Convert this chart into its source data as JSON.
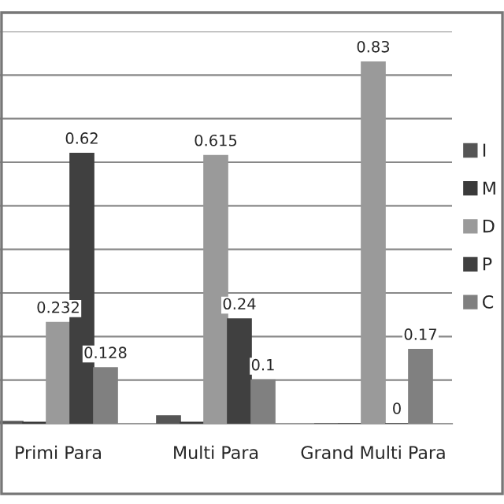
{
  "chart_data": {
    "type": "bar",
    "categories": [
      "Primi Para",
      "Multi Para",
      "Grand Multi Para"
    ],
    "series": [
      {
        "name": "I",
        "color": "#555555",
        "values": [
          0.005,
          0.018,
          0
        ],
        "value_labels": [
          null,
          null,
          null
        ]
      },
      {
        "name": "M",
        "color": "#3a3a3a",
        "values": [
          0.003,
          0.003,
          0
        ],
        "value_labels": [
          null,
          null,
          null
        ]
      },
      {
        "name": "D",
        "color": "#9a9a9a",
        "values": [
          0.232,
          0.615,
          0.83
        ],
        "value_labels": [
          "0.232",
          "0.615",
          "0.83"
        ]
      },
      {
        "name": "P",
        "color": "#404040",
        "values": [
          0.62,
          0.24,
          0
        ],
        "value_labels": [
          "0.62",
          "0.24",
          "0"
        ]
      },
      {
        "name": "C",
        "color": "#808080",
        "values": [
          0.128,
          0.1,
          0.17
        ],
        "value_labels": [
          "0.128",
          "0.1",
          "0.17"
        ]
      }
    ],
    "ylim": [
      0,
      0.9
    ],
    "yticks": [
      {
        "value": 0,
        "label": null
      },
      {
        "value": 0.1,
        "label": null
      },
      {
        "value": 0.2,
        "label": null
      },
      {
        "value": 0.3,
        "label": null
      },
      {
        "value": 0.4,
        "label": null
      },
      {
        "value": 0.5,
        "label": null
      },
      {
        "value": 0.6,
        "label": null
      },
      {
        "value": 0.7,
        "label": null
      },
      {
        "value": 0.8,
        "label": null
      },
      {
        "value": 0.9,
        "label": null
      }
    ],
    "grid": "y",
    "legend": "right",
    "tick_labels": "x"
  }
}
